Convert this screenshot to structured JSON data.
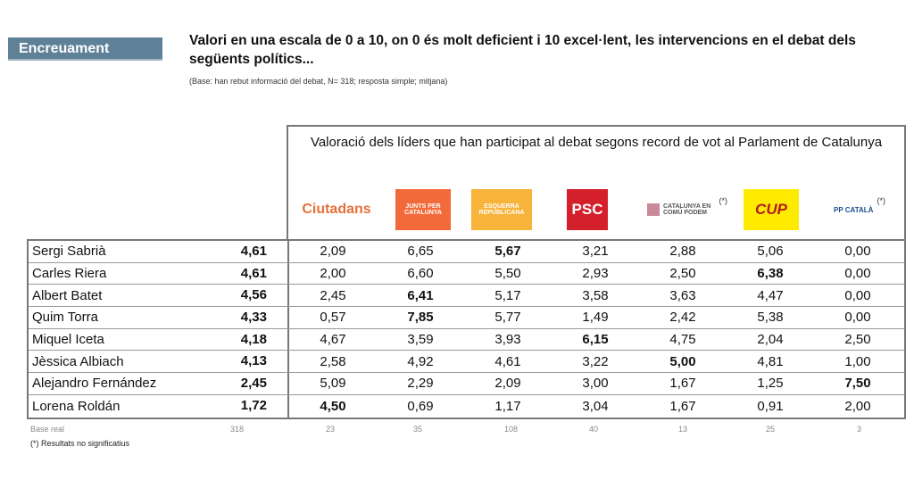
{
  "tag": "Encreuament",
  "title": "Valori en una escala de 0 a 10, on 0 és molt deficient i 10 excel·lent, les intervencions en el debat dels següents polítics...",
  "base": "(Base: han rebut informació del debat, N= 318; resposta simple; mitjana)",
  "header": "Valoració dels líders que han participat al debat segons record de vot al Parlament de Catalunya",
  "parties": [
    {
      "label": "Ciutadans",
      "color": "#e4703a",
      "note": ""
    },
    {
      "label": "JUNTS PER CATALUNYA",
      "color": "#f26a3a",
      "note": ""
    },
    {
      "label": "ESQUERRA REPUBLICANA",
      "color": "#f7b33a",
      "note": ""
    },
    {
      "label": "PSC",
      "color": "#d3202a",
      "note": ""
    },
    {
      "label": "CATALUNYA EN COMÚ PODEM",
      "color": "#c98a9a",
      "note": "(*)"
    },
    {
      "label": "CUP",
      "color": "#ffeb00",
      "note": ""
    },
    {
      "label": "PP CATALÀ",
      "color": "#1b4f8c",
      "note": "(*)"
    }
  ],
  "rows": [
    {
      "name": "Sergi Sabrià",
      "avg": "4,61",
      "values": [
        "2,09",
        "6,65",
        "5,67",
        "3,21",
        "2,88",
        "5,06",
        "0,00"
      ],
      "bold": 2
    },
    {
      "name": "Carles Riera",
      "avg": "4,61",
      "values": [
        "2,00",
        "6,60",
        "5,50",
        "2,93",
        "2,50",
        "6,38",
        "0,00"
      ],
      "bold": 5
    },
    {
      "name": "Albert Batet",
      "avg": "4,56",
      "values": [
        "2,45",
        "6,41",
        "5,17",
        "3,58",
        "3,63",
        "4,47",
        "0,00"
      ],
      "bold": 1
    },
    {
      "name": "Quim Torra",
      "avg": "4,33",
      "values": [
        "0,57",
        "7,85",
        "5,77",
        "1,49",
        "2,42",
        "5,38",
        "0,00"
      ],
      "bold": 1
    },
    {
      "name": "Miquel Iceta",
      "avg": "4,18",
      "values": [
        "4,67",
        "3,59",
        "3,93",
        "6,15",
        "4,75",
        "2,04",
        "2,50"
      ],
      "bold": 3
    },
    {
      "name": "Jèssica Albiach",
      "avg": "4,13",
      "values": [
        "2,58",
        "4,92",
        "4,61",
        "3,22",
        "5,00",
        "4,81",
        "1,00"
      ],
      "bold": 4
    },
    {
      "name": "Alejandro Fernández",
      "avg": "2,45",
      "values": [
        "5,09",
        "2,29",
        "2,09",
        "3,00",
        "1,67",
        "1,25",
        "7,50"
      ],
      "bold": 6
    },
    {
      "name": "Lorena Roldán",
      "avg": "1,72",
      "values": [
        "4,50",
        "0,69",
        "1,17",
        "3,04",
        "1,67",
        "0,91",
        "2,00"
      ],
      "bold": 0
    }
  ],
  "base_real": {
    "label": "Base real",
    "total": "318",
    "values": [
      "23",
      "35",
      "108",
      "40",
      "13",
      "25",
      "3"
    ]
  },
  "footnote": "(*) Resultats no significatius"
}
